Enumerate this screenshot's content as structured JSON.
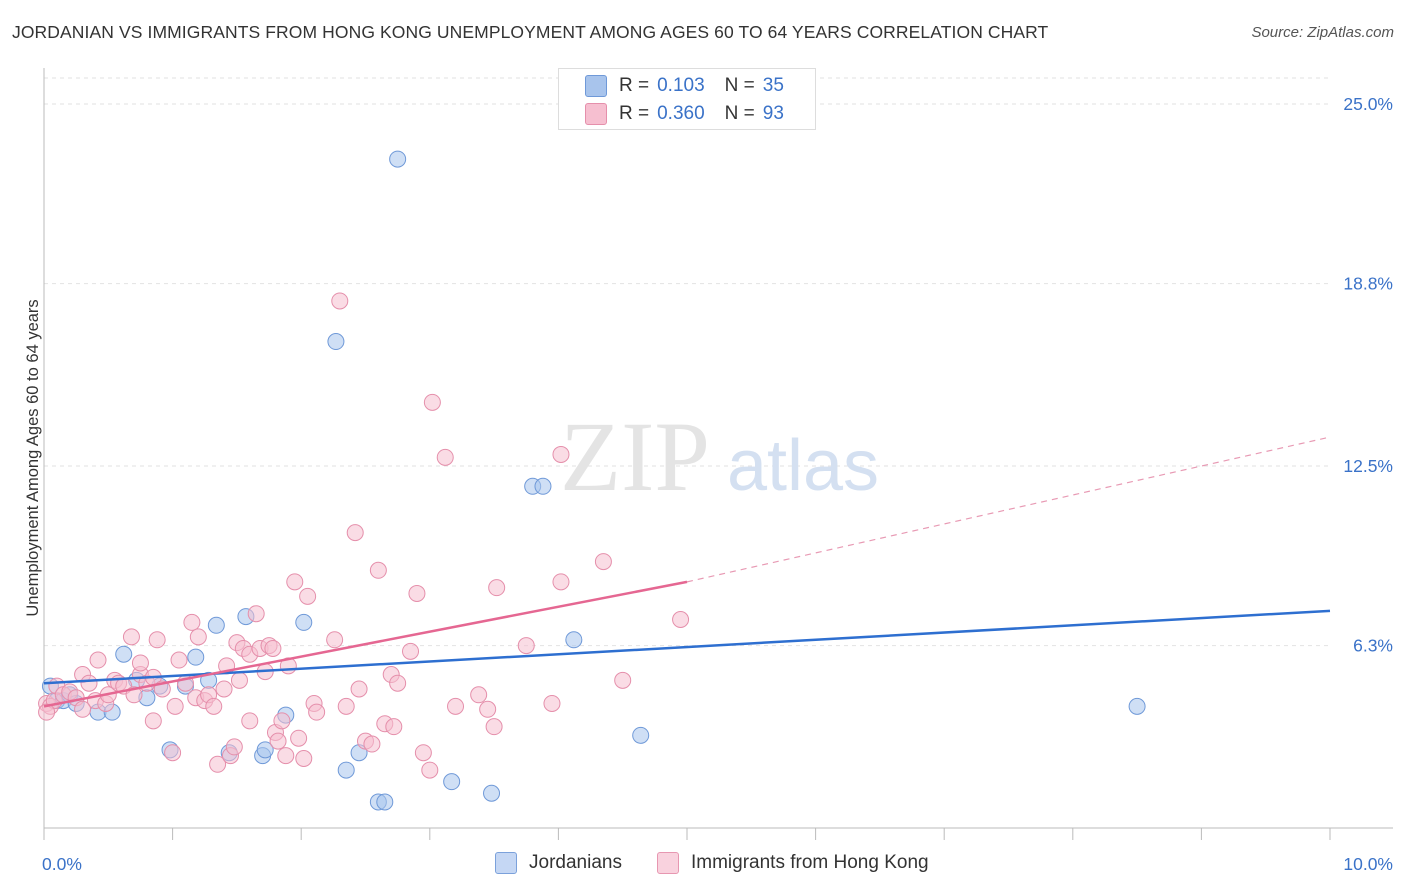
{
  "title": "JORDANIAN VS IMMIGRANTS FROM HONG KONG UNEMPLOYMENT AMONG AGES 60 TO 64 YEARS CORRELATION CHART",
  "source": "Source: ZipAtlas.com",
  "watermark": {
    "zip": "ZIP",
    "atlas": "atlas"
  },
  "legend_top": {
    "rows": [
      {
        "r_label": "R =",
        "r_value": "0.103",
        "n_label": "N =",
        "n_value": "35",
        "color": "#a8c4ec",
        "border": "#6f99d8"
      },
      {
        "r_label": "R =",
        "r_value": "0.360",
        "n_label": "N =",
        "n_value": "93",
        "color": "#f6bfd0",
        "border": "#e58fab"
      }
    ]
  },
  "legend_bottom": [
    {
      "label": "Jordanians",
      "color": "#c5d7f4",
      "border": "#7ba1db"
    },
    {
      "label": "Immigrants from Hong Kong",
      "color": "#f9d2de",
      "border": "#e797b1"
    }
  ],
  "chart_data": {
    "type": "scatter",
    "title": "JORDANIAN VS IMMIGRANTS FROM HONG KONG UNEMPLOYMENT AMONG AGES 60 TO 64 YEARS CORRELATION CHART",
    "xlabel": "",
    "ylabel": "Unemployment Among Ages 60 to 64 years",
    "xlim": [
      0,
      10
    ],
    "ylim": [
      0,
      25.9
    ],
    "x_tick_labels": [
      {
        "value": 0,
        "label": "0.0%"
      },
      {
        "value": 10,
        "label": "10.0%"
      }
    ],
    "y_tick_labels": [
      {
        "value": 6.3,
        "label": "6.3%"
      },
      {
        "value": 12.5,
        "label": "12.5%"
      },
      {
        "value": 18.8,
        "label": "18.8%"
      },
      {
        "value": 25.0,
        "label": "25.0%"
      }
    ],
    "x_minor_ticks": [
      0,
      1,
      2,
      3,
      4,
      5,
      6,
      7,
      8,
      9,
      10
    ],
    "grid": true,
    "series": [
      {
        "name": "Jordanians",
        "color": "#6f99d8",
        "fill": "#a8c4ec",
        "trend": {
          "x0": 0,
          "y0": 5.0,
          "x1": 10,
          "y1": 7.5,
          "color": "#2e6fd0"
        },
        "points": [
          [
            0.05,
            4.9
          ],
          [
            0.1,
            4.4
          ],
          [
            0.15,
            4.4
          ],
          [
            0.2,
            4.6
          ],
          [
            0.25,
            4.3
          ],
          [
            0.42,
            4.0
          ],
          [
            0.53,
            4.0
          ],
          [
            0.62,
            6.0
          ],
          [
            0.72,
            5.1
          ],
          [
            0.8,
            4.5
          ],
          [
            0.9,
            4.9
          ],
          [
            0.98,
            2.7
          ],
          [
            1.1,
            4.9
          ],
          [
            1.18,
            5.9
          ],
          [
            1.28,
            5.1
          ],
          [
            1.34,
            7.0
          ],
          [
            1.44,
            2.6
          ],
          [
            1.57,
            7.3
          ],
          [
            1.7,
            2.5
          ],
          [
            1.72,
            2.7
          ],
          [
            1.88,
            3.9
          ],
          [
            2.02,
            7.1
          ],
          [
            2.27,
            16.8
          ],
          [
            2.35,
            2.0
          ],
          [
            2.45,
            2.6
          ],
          [
            2.6,
            0.9
          ],
          [
            2.65,
            0.9
          ],
          [
            2.75,
            23.1
          ],
          [
            3.17,
            1.6
          ],
          [
            3.48,
            1.2
          ],
          [
            3.8,
            11.8
          ],
          [
            3.88,
            11.8
          ],
          [
            4.12,
            6.5
          ],
          [
            4.64,
            3.2
          ],
          [
            8.5,
            4.2
          ]
        ]
      },
      {
        "name": "Immigrants from Hong Kong",
        "color": "#e58fab",
        "fill": "#f6bfd0",
        "trend": {
          "x0": 0,
          "y0": 4.2,
          "x1": 5.0,
          "y1": 8.5,
          "color": "#e56792"
        },
        "trend_ext": {
          "x0": 5.0,
          "y0": 8.5,
          "x1": 10,
          "y1": 13.5
        },
        "points": [
          [
            0.02,
            4.3
          ],
          [
            0.05,
            4.2
          ],
          [
            0.08,
            4.4
          ],
          [
            0.1,
            4.9
          ],
          [
            0.15,
            4.6
          ],
          [
            0.2,
            4.7
          ],
          [
            0.25,
            4.5
          ],
          [
            0.3,
            5.3
          ],
          [
            0.35,
            5.0
          ],
          [
            0.4,
            4.4
          ],
          [
            0.42,
            5.8
          ],
          [
            0.48,
            4.3
          ],
          [
            0.5,
            4.6
          ],
          [
            0.55,
            5.1
          ],
          [
            0.58,
            5.0
          ],
          [
            0.62,
            4.9
          ],
          [
            0.68,
            6.6
          ],
          [
            0.7,
            4.6
          ],
          [
            0.75,
            5.3
          ],
          [
            0.75,
            5.7
          ],
          [
            0.8,
            5.0
          ],
          [
            0.85,
            3.7
          ],
          [
            0.85,
            5.2
          ],
          [
            0.88,
            6.5
          ],
          [
            0.92,
            4.8
          ],
          [
            1.0,
            2.6
          ],
          [
            1.02,
            4.2
          ],
          [
            1.05,
            5.8
          ],
          [
            1.1,
            5.0
          ],
          [
            1.15,
            7.1
          ],
          [
            1.18,
            4.5
          ],
          [
            1.2,
            6.6
          ],
          [
            1.25,
            4.4
          ],
          [
            1.28,
            4.6
          ],
          [
            1.32,
            4.2
          ],
          [
            1.35,
            2.2
          ],
          [
            1.4,
            4.8
          ],
          [
            1.42,
            5.6
          ],
          [
            1.45,
            2.5
          ],
          [
            1.48,
            2.8
          ],
          [
            1.5,
            6.4
          ],
          [
            1.52,
            5.1
          ],
          [
            1.55,
            6.2
          ],
          [
            1.6,
            3.7
          ],
          [
            1.6,
            6.0
          ],
          [
            1.65,
            7.4
          ],
          [
            1.68,
            6.2
          ],
          [
            1.72,
            5.4
          ],
          [
            1.75,
            6.3
          ],
          [
            1.78,
            6.2
          ],
          [
            1.8,
            3.3
          ],
          [
            1.82,
            3.0
          ],
          [
            1.85,
            3.7
          ],
          [
            1.88,
            2.5
          ],
          [
            1.9,
            5.6
          ],
          [
            1.95,
            8.5
          ],
          [
            1.98,
            3.1
          ],
          [
            2.02,
            2.4
          ],
          [
            2.05,
            8.0
          ],
          [
            2.1,
            4.3
          ],
          [
            2.12,
            4.0
          ],
          [
            2.26,
            6.5
          ],
          [
            2.3,
            18.2
          ],
          [
            2.35,
            4.2
          ],
          [
            2.42,
            10.2
          ],
          [
            2.45,
            4.8
          ],
          [
            2.5,
            3.0
          ],
          [
            2.55,
            2.9
          ],
          [
            2.6,
            8.9
          ],
          [
            2.65,
            3.6
          ],
          [
            2.7,
            5.3
          ],
          [
            2.72,
            3.5
          ],
          [
            2.75,
            5.0
          ],
          [
            2.85,
            6.1
          ],
          [
            2.9,
            8.1
          ],
          [
            2.95,
            2.6
          ],
          [
            3.0,
            2.0
          ],
          [
            3.02,
            14.7
          ],
          [
            3.12,
            12.8
          ],
          [
            3.2,
            4.2
          ],
          [
            3.38,
            4.6
          ],
          [
            3.45,
            4.1
          ],
          [
            3.5,
            3.5
          ],
          [
            3.52,
            8.3
          ],
          [
            3.75,
            6.3
          ],
          [
            3.95,
            4.3
          ],
          [
            4.02,
            12.9
          ],
          [
            4.02,
            8.5
          ],
          [
            4.35,
            9.2
          ],
          [
            4.5,
            5.1
          ],
          [
            4.95,
            7.2
          ],
          [
            0.02,
            4.0
          ],
          [
            0.3,
            4.1
          ]
        ]
      }
    ]
  }
}
